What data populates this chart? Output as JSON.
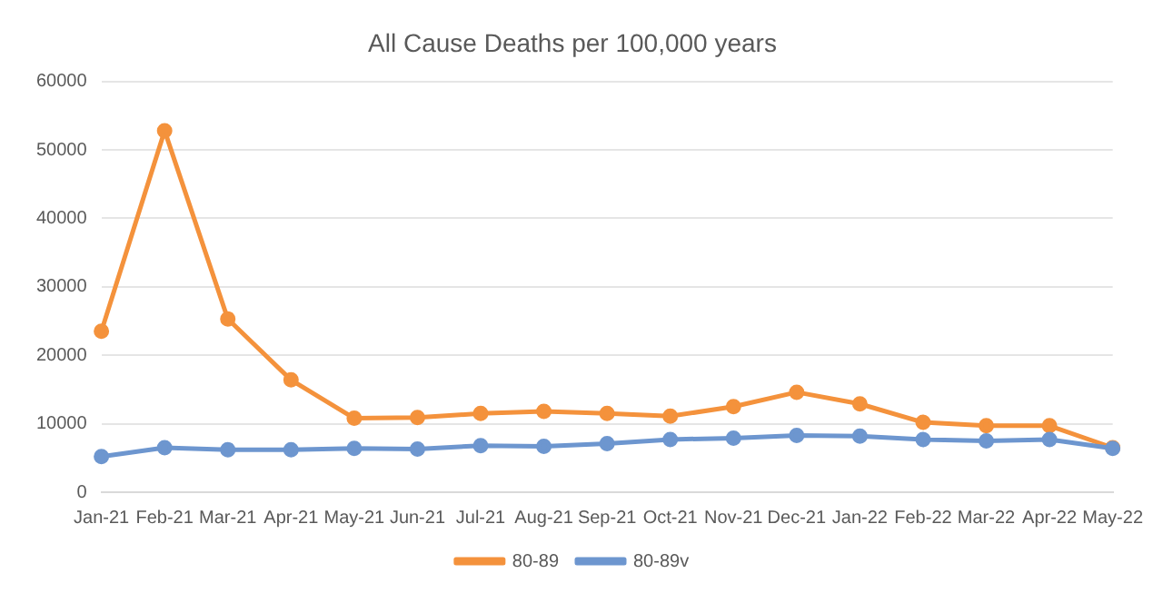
{
  "chart_data": {
    "type": "line",
    "title": "All Cause Deaths per 100,000 years",
    "categories": [
      "Jan-21",
      "Feb-21",
      "Mar-21",
      "Apr-21",
      "May-21",
      "Jun-21",
      "Jul-21",
      "Aug-21",
      "Sep-21",
      "Oct-21",
      "Nov-21",
      "Dec-21",
      "Jan-22",
      "Feb-22",
      "Mar-22",
      "Apr-22",
      "May-22"
    ],
    "series": [
      {
        "name": "80-89",
        "color": "#f4923c",
        "values": [
          23500,
          52800,
          25300,
          16400,
          10800,
          10900,
          11500,
          11800,
          11500,
          11100,
          12500,
          14600,
          12900,
          10200,
          9700,
          9700,
          6500
        ]
      },
      {
        "name": "80-89v",
        "color": "#6d96cf",
        "values": [
          5200,
          6500,
          6200,
          6200,
          6400,
          6300,
          6800,
          6700,
          7100,
          7700,
          7900,
          8300,
          8200,
          7700,
          7500,
          7700,
          6400
        ]
      }
    ],
    "ylim": [
      0,
      60000
    ],
    "yticks": [
      0,
      10000,
      20000,
      30000,
      40000,
      50000,
      60000
    ],
    "grid": "y",
    "legend": "bottom",
    "marker": "circle",
    "line_style": "solid"
  }
}
